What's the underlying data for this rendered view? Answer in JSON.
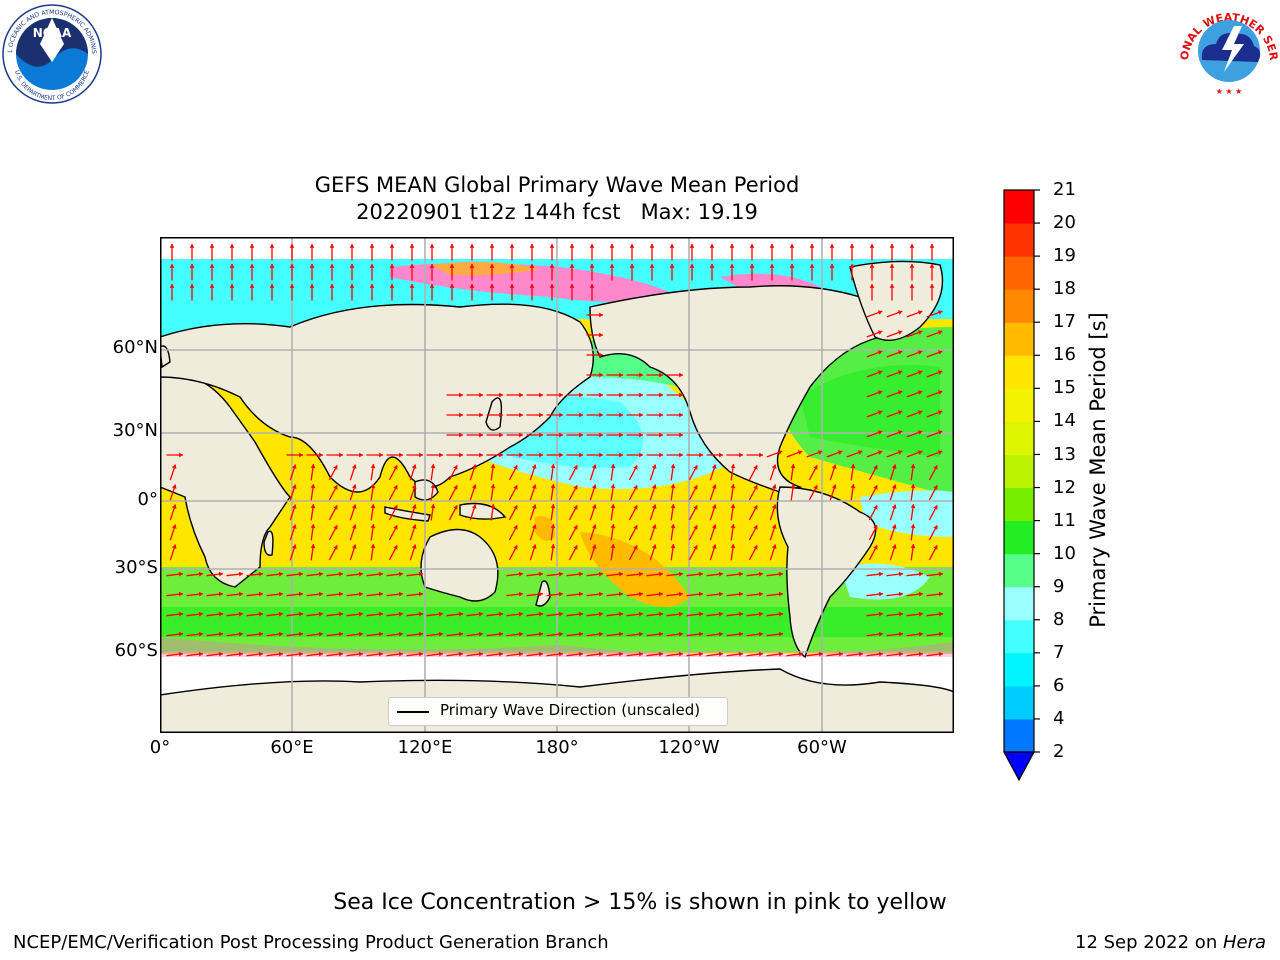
{
  "title": "GEFS MEAN Global Primary Wave Mean Period",
  "subtitle": "20220901 t12z 144h fcst   Max: 19.19",
  "map": {
    "lon_ticks": [
      "0°",
      "60°E",
      "120°E",
      "180°",
      "120°W",
      "60°W"
    ],
    "lat_ticks": [
      "60°N",
      "30°N",
      "0°",
      "30°S",
      "60°S"
    ],
    "legend_label": "Primary Wave Direction (unscaled)",
    "land_color": "#efecdc",
    "arrow_color": "#ff0000"
  },
  "colorbar": {
    "label": "Primary Wave Mean Period [s]",
    "ticks": [
      "2",
      "4",
      "6",
      "7",
      "8",
      "9",
      "10",
      "11",
      "12",
      "13",
      "14",
      "15",
      "16",
      "17",
      "18",
      "19",
      "20",
      "21"
    ],
    "colors": [
      "#0077ff",
      "#00ccff",
      "#00f5ff",
      "#44ffff",
      "#99ffff",
      "#55ff88",
      "#22ee22",
      "#77ee00",
      "#bbf200",
      "#ddf500",
      "#f3f300",
      "#ffe600",
      "#ffbb00",
      "#ff8800",
      "#ff6600",
      "#ff3300",
      "#ff0000"
    ],
    "under_color": "#0000ff"
  },
  "caption": "Sea Ice Concentration > 15% is shown in pink to yellow",
  "footer": {
    "left": "NCEP/EMC/Verification Post Processing Product Generation Branch",
    "right_date": "12 Sep 2022 on ",
    "right_host": "Hera"
  },
  "logos": {
    "noaa_text": "NOAA",
    "noaa_ring": "NATIONAL OCEANIC AND ATMOSPHERIC ADMINISTRATION",
    "noaa_ring_bottom": "U.S. DEPARTMENT OF COMMERCE",
    "nws_ring": "NATIONAL WEATHER SERVICE"
  }
}
